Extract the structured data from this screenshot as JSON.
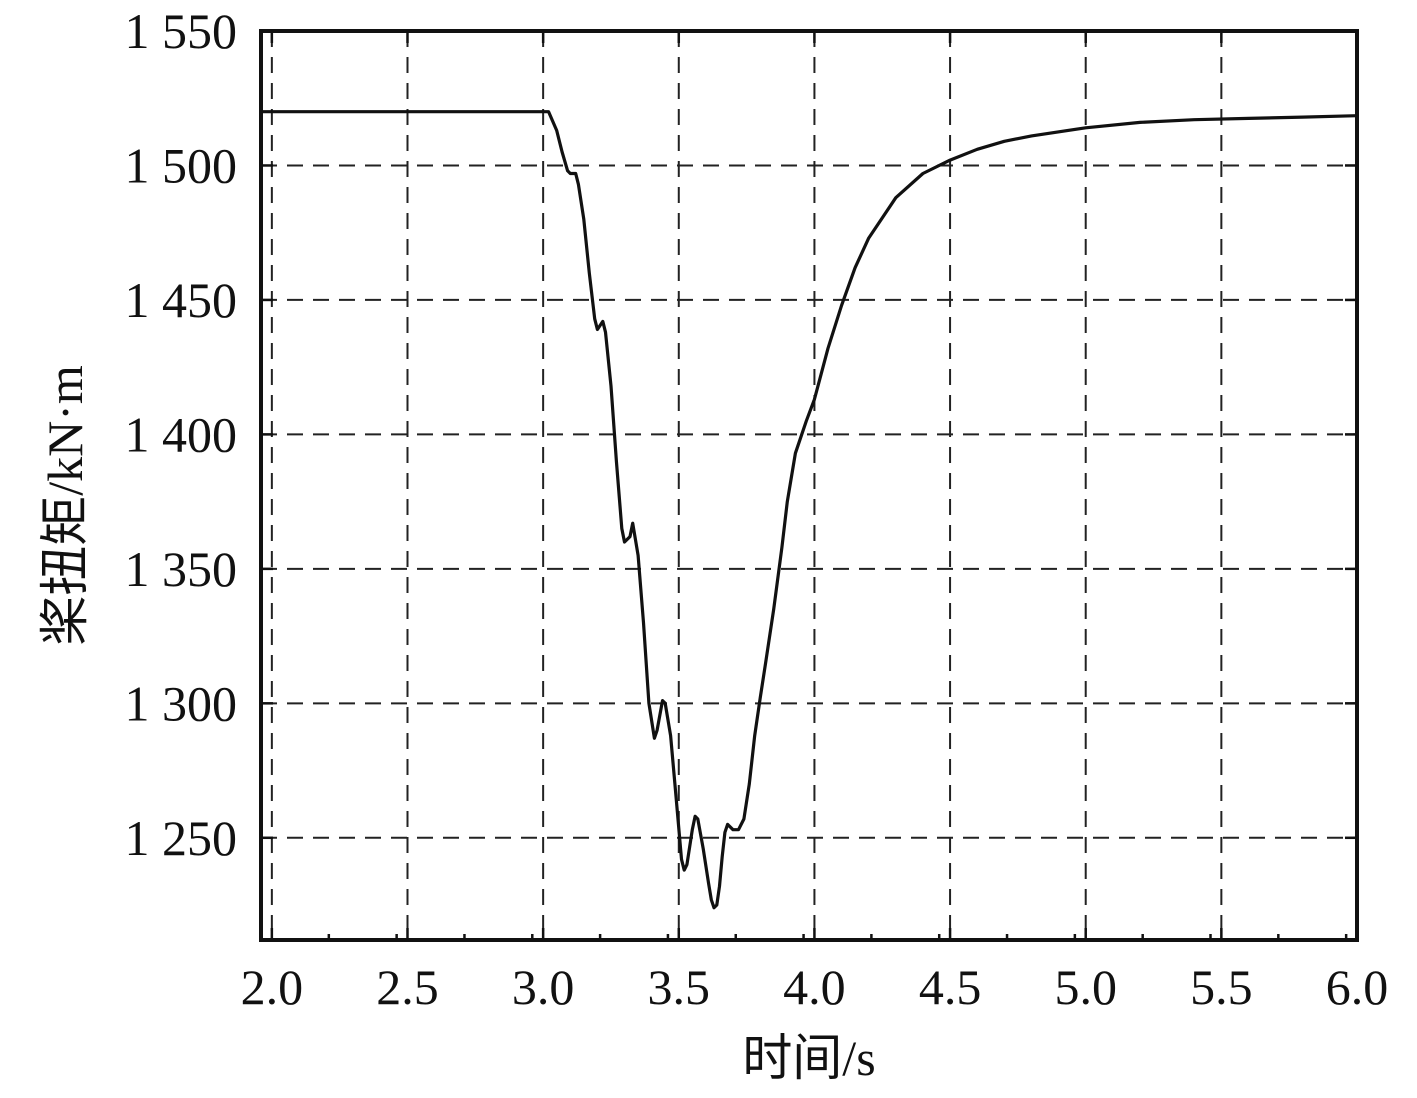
{
  "chart_data": {
    "type": "line",
    "title": "",
    "xlabel": "时间/s",
    "ylabel": "桨扭矩/kN·m",
    "xlim": [
      1.96,
      6.0
    ],
    "ylim": [
      1212,
      1550
    ],
    "xticks": [
      2.0,
      2.5,
      3.0,
      3.5,
      4.0,
      4.5,
      5.0,
      5.5,
      6.0
    ],
    "xtick_labels": [
      "2.0",
      "2.5",
      "3.0",
      "3.5",
      "4.0",
      "4.5",
      "5.0",
      "5.5",
      "6.0"
    ],
    "yticks": [
      1250,
      1300,
      1350,
      1400,
      1450,
      1500,
      1550
    ],
    "ytick_labels": [
      "1 250",
      "1 300",
      "1 350",
      "1 400",
      "1 450",
      "1 500",
      "1 550"
    ],
    "grid": true,
    "legend": "none",
    "series": [
      {
        "color": "#111111",
        "x": [
          1.96,
          2.5,
          3.0,
          3.02,
          3.05,
          3.07,
          3.09,
          3.1,
          3.12,
          3.13,
          3.15,
          3.17,
          3.19,
          3.2,
          3.22,
          3.23,
          3.25,
          3.27,
          3.29,
          3.3,
          3.32,
          3.33,
          3.35,
          3.37,
          3.39,
          3.41,
          3.42,
          3.44,
          3.45,
          3.47,
          3.49,
          3.51,
          3.52,
          3.53,
          3.55,
          3.56,
          3.57,
          3.59,
          3.61,
          3.62,
          3.63,
          3.64,
          3.65,
          3.66,
          3.67,
          3.68,
          3.7,
          3.72,
          3.74,
          3.76,
          3.78,
          3.8,
          3.82,
          3.85,
          3.88,
          3.9,
          3.93,
          3.97,
          4.0,
          4.05,
          4.1,
          4.15,
          4.2,
          4.3,
          4.4,
          4.5,
          4.6,
          4.7,
          4.8,
          5.0,
          5.2,
          5.4,
          5.6,
          5.8,
          6.0
        ],
        "y": [
          1520,
          1520,
          1520,
          1520,
          1513,
          1505,
          1498,
          1497,
          1497,
          1493,
          1480,
          1460,
          1443,
          1439,
          1442,
          1438,
          1418,
          1390,
          1365,
          1360,
          1362,
          1367,
          1355,
          1330,
          1300,
          1287,
          1290,
          1301,
          1300,
          1288,
          1265,
          1242,
          1238,
          1240,
          1253,
          1258,
          1257,
          1246,
          1233,
          1227,
          1224,
          1225,
          1232,
          1243,
          1252,
          1255,
          1253,
          1253,
          1257,
          1270,
          1288,
          1302,
          1315,
          1335,
          1358,
          1375,
          1393,
          1405,
          1413,
          1432,
          1448,
          1462,
          1473,
          1488,
          1497,
          1502,
          1506,
          1509,
          1511,
          1514,
          1516,
          1517,
          1517.5,
          1518,
          1518.5
        ]
      }
    ]
  }
}
